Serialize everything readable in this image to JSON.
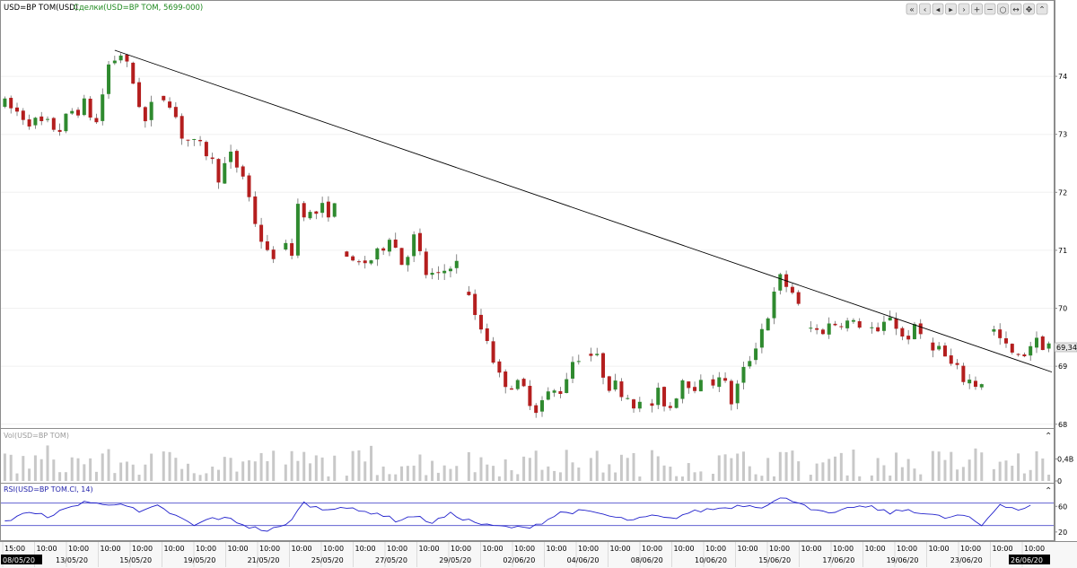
{
  "header": {
    "symbol": "USD=BP TOM(USD)",
    "trades_label": "Сделки(USD=BP TOM, 5699-000)"
  },
  "toolbar": {
    "buttons": [
      "first-icon",
      "prev-page-icon",
      "prev-icon",
      "next-icon",
      "next-page-icon",
      "zoom-in-icon",
      "zoom-out-icon",
      "zoom-reset-icon",
      "fit-icon",
      "move-icon",
      "scroll-up-icon"
    ]
  },
  "panels": {
    "volume_title": "Vol(USD=BP TOM)",
    "rsi_title": "RSI(USD=BP TOM.Cl, 14)"
  },
  "colors": {
    "up": "#2f8a2f",
    "down": "#b41e1e",
    "volume": "#c8c8c8",
    "rsi_line": "#2222cc",
    "rsi_levels": "#4a4acc",
    "trendline": "#000000"
  },
  "chart_data": [
    {
      "type": "candlestick",
      "title": "USD=BP TOM(USD)",
      "y_axis": {
        "range": [
          67.95,
          75.1
        ],
        "ticks": [
          68,
          69,
          70,
          71,
          72,
          73,
          74
        ]
      },
      "last_price": "69,34",
      "x_tick_labels": [
        "15:00",
        "10:00",
        "10:00",
        "10:00",
        "10:00",
        "10:00",
        "10:00",
        "10:00",
        "10:00",
        "10:00",
        "10:00",
        "10:00",
        "10:00",
        "10:00",
        "10:00",
        "10:00",
        "10:00",
        "10:00",
        "10:00",
        "10:00",
        "10:00",
        "10:00",
        "10:00",
        "10:00",
        "10:00",
        "10:00",
        "10:00",
        "10:00",
        "10:00",
        "10:00",
        "10:00",
        "10:00",
        "10:00",
        "13:00"
      ],
      "x_date_labels": [
        "08/05/20",
        "13/05/20",
        "15/05/20",
        "19/05/20",
        "21/05/20",
        "25/05/20",
        "27/05/20",
        "29/05/20",
        "02/06/20",
        "04/06/20",
        "08/06/20",
        "10/06/20",
        "15/06/20",
        "17/06/20",
        "19/06/20",
        "23/06/20",
        "26/06/20"
      ],
      "anchors": [
        [
          0,
          73.5
        ],
        [
          5,
          73.2
        ],
        [
          9,
          73.1
        ],
        [
          11,
          73.4
        ],
        [
          13,
          73.5
        ],
        [
          15,
          73.2
        ],
        [
          17,
          74.2
        ],
        [
          19,
          74.4
        ],
        [
          21,
          73.9
        ],
        [
          23,
          73.2
        ],
        [
          25,
          73.7
        ],
        [
          27,
          73.6
        ],
        [
          29,
          73.0
        ],
        [
          31,
          72.8
        ],
        [
          33,
          72.7
        ],
        [
          35,
          72.3
        ],
        [
          37,
          72.6
        ],
        [
          39,
          72.3
        ],
        [
          41,
          71.5
        ],
        [
          43,
          70.9
        ],
        [
          45,
          71.0
        ],
        [
          47,
          71.0
        ],
        [
          48,
          71.8
        ],
        [
          50,
          71.6
        ],
        [
          52,
          71.7
        ],
        [
          54,
          71.7
        ],
        [
          55,
          71.3
        ],
        [
          57,
          70.7
        ],
        [
          59,
          70.8
        ],
        [
          61,
          70.9
        ],
        [
          63,
          71.3
        ],
        [
          65,
          70.8
        ],
        [
          67,
          71.2
        ],
        [
          69,
          70.6
        ],
        [
          71,
          70.5
        ],
        [
          73,
          70.8
        ],
        [
          75,
          70.7
        ],
        [
          76,
          70.3
        ],
        [
          77,
          69.8
        ],
        [
          79,
          69.5
        ],
        [
          81,
          68.8
        ],
        [
          83,
          68.7
        ],
        [
          85,
          68.6
        ],
        [
          87,
          68.3
        ],
        [
          89,
          68.5
        ],
        [
          91,
          68.6
        ],
        [
          93,
          69.1
        ],
        [
          95,
          69.3
        ],
        [
          97,
          69.1
        ],
        [
          99,
          68.7
        ],
        [
          101,
          68.6
        ],
        [
          103,
          68.4
        ],
        [
          105,
          68.2
        ],
        [
          107,
          68.5
        ],
        [
          109,
          68.3
        ],
        [
          111,
          68.8
        ],
        [
          113,
          68.7
        ],
        [
          115,
          68.6
        ],
        [
          117,
          68.9
        ],
        [
          119,
          68.4
        ],
        [
          121,
          68.9
        ],
        [
          123,
          69.4
        ],
        [
          125,
          69.9
        ],
        [
          127,
          70.5
        ],
        [
          129,
          70.3
        ],
        [
          131,
          69.7
        ],
        [
          133,
          69.6
        ],
        [
          135,
          69.7
        ],
        [
          137,
          69.8
        ],
        [
          139,
          69.7
        ],
        [
          141,
          69.8
        ],
        [
          143,
          69.5
        ],
        [
          145,
          69.9
        ],
        [
          147,
          69.5
        ],
        [
          149,
          69.6
        ],
        [
          151,
          69.5
        ],
        [
          153,
          69.3
        ],
        [
          155,
          69.0
        ],
        [
          157,
          68.8
        ],
        [
          159,
          68.7
        ],
        [
          161,
          68.8
        ],
        [
          162,
          69.6
        ],
        [
          164,
          69.3
        ],
        [
          166,
          69.1
        ],
        [
          168,
          69.4
        ]
      ],
      "gaps": [
        25,
        45,
        55,
        75,
        95,
        105,
        115,
        131,
        141,
        151,
        161
      ],
      "trendline": {
        "from": [
          18,
          74.45
        ],
        "to": [
          172,
          68.9
        ]
      }
    },
    {
      "type": "bar",
      "title": "Vol(USD=BP TOM)",
      "y_axis": {
        "range": [
          0,
          0.75
        ],
        "tick_labels": [
          "0,4B",
          "0"
        ],
        "ticks": [
          0.4,
          0
        ]
      }
    },
    {
      "type": "line",
      "title": "RSI(USD=BP TOM.Cl, 14)",
      "y_axis": {
        "range": [
          10,
          80
        ],
        "ticks": [
          60,
          20
        ]
      },
      "levels": [
        65,
        30
      ],
      "anchors": [
        [
          0,
          35
        ],
        [
          3,
          50
        ],
        [
          7,
          45
        ],
        [
          10,
          55
        ],
        [
          13,
          68
        ],
        [
          16,
          62
        ],
        [
          19,
          66
        ],
        [
          22,
          50
        ],
        [
          25,
          60
        ],
        [
          28,
          45
        ],
        [
          31,
          30
        ],
        [
          34,
          42
        ],
        [
          37,
          40
        ],
        [
          40,
          28
        ],
        [
          43,
          22
        ],
        [
          46,
          30
        ],
        [
          49,
          65
        ],
        [
          52,
          55
        ],
        [
          55,
          60
        ],
        [
          58,
          52
        ],
        [
          61,
          50
        ],
        [
          64,
          38
        ],
        [
          67,
          45
        ],
        [
          70,
          35
        ],
        [
          73,
          48
        ],
        [
          76,
          38
        ],
        [
          79,
          30
        ],
        [
          82,
          28
        ],
        [
          85,
          26
        ],
        [
          88,
          35
        ],
        [
          91,
          50
        ],
        [
          94,
          52
        ],
        [
          97,
          50
        ],
        [
          100,
          42
        ],
        [
          103,
          38
        ],
        [
          106,
          45
        ],
        [
          109,
          40
        ],
        [
          112,
          50
        ],
        [
          115,
          55
        ],
        [
          118,
          58
        ],
        [
          121,
          62
        ],
        [
          124,
          60
        ],
        [
          127,
          72
        ],
        [
          130,
          68
        ],
        [
          133,
          52
        ],
        [
          136,
          48
        ],
        [
          139,
          60
        ],
        [
          142,
          58
        ],
        [
          145,
          50
        ],
        [
          148,
          55
        ],
        [
          151,
          48
        ],
        [
          154,
          42
        ],
        [
          157,
          46
        ],
        [
          160,
          30
        ],
        [
          163,
          64
        ],
        [
          166,
          55
        ],
        [
          168,
          60
        ]
      ]
    }
  ]
}
